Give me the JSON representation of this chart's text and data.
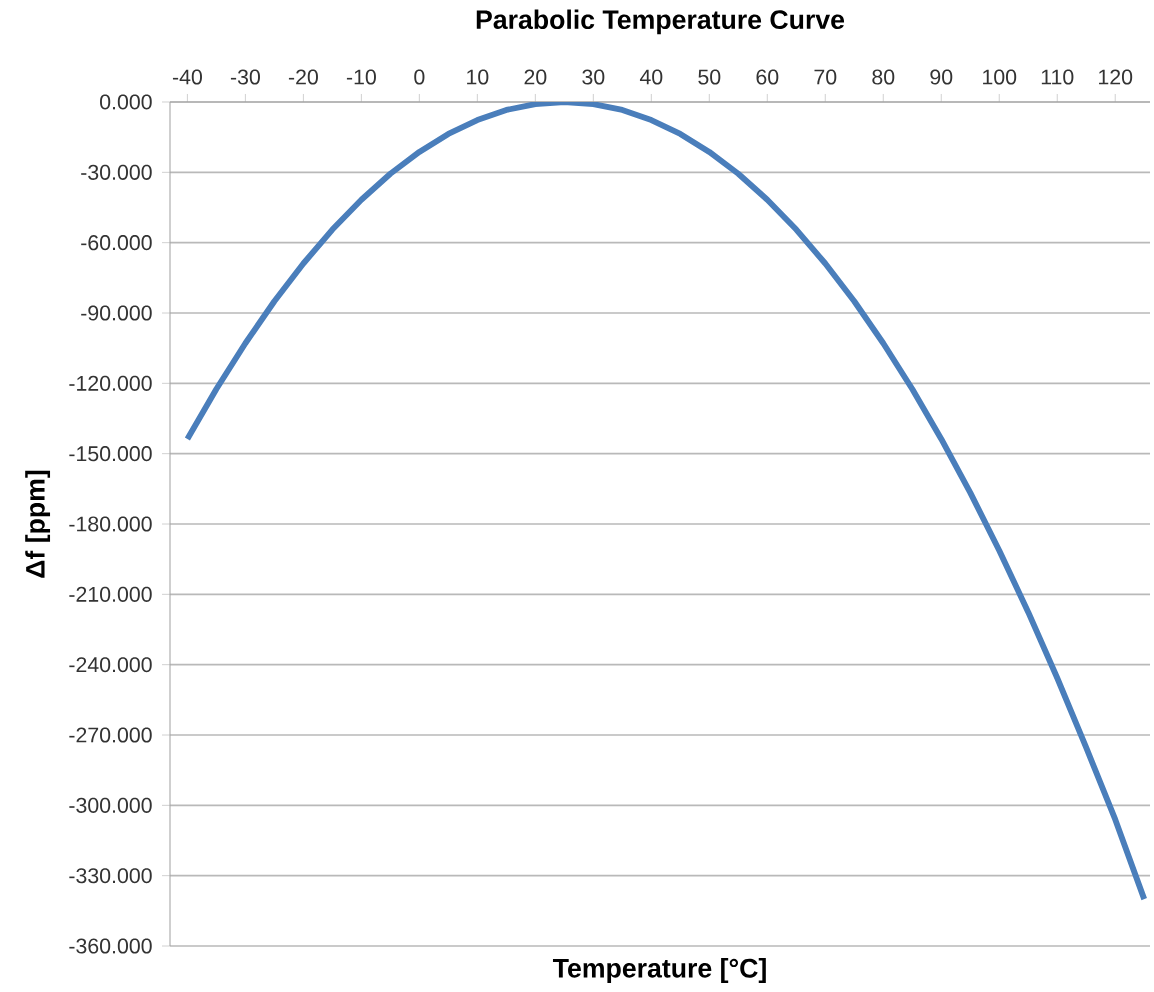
{
  "chart_data": {
    "type": "line",
    "title": "Parabolic Temperature Curve",
    "xlabel": "Temperature [°C]",
    "ylabel": "Δf [ppm]",
    "x": [
      -40,
      -35,
      -30,
      -25,
      -20,
      -15,
      -10,
      -5,
      0,
      5,
      10,
      15,
      20,
      25,
      30,
      35,
      40,
      45,
      50,
      55,
      60,
      65,
      70,
      75,
      80,
      85,
      90,
      95,
      100,
      105,
      110,
      115,
      120,
      125
    ],
    "series": [
      {
        "color": "#4a7ebb",
        "values": [
          -143.7,
          -122.4,
          -102.9,
          -85,
          -68.9,
          -54.4,
          -41.7,
          -30.6,
          -21.3,
          -13.6,
          -7.7,
          -3.4,
          -0.9,
          0,
          -0.9,
          -3.4,
          -7.7,
          -13.6,
          -21.3,
          -30.6,
          -41.7,
          -54.4,
          -68.9,
          -85,
          -102.9,
          -122.4,
          -143.7,
          -166.6,
          -191.3,
          -217.6,
          -245.7,
          -275.4,
          -306,
          -340
        ]
      }
    ],
    "xlim": [
      -43,
      126
    ],
    "ylim": [
      -360,
      0
    ],
    "xticks": [
      -40,
      -30,
      -20,
      -10,
      0,
      10,
      20,
      30,
      40,
      50,
      60,
      70,
      80,
      90,
      100,
      110,
      120
    ],
    "yticks": [
      {
        "value": 0,
        "label": "0.000"
      },
      {
        "value": -30,
        "label": "-30.000"
      },
      {
        "value": -60,
        "label": "-60.000"
      },
      {
        "value": -90,
        "label": "-90.000"
      },
      {
        "value": -120,
        "label": "-120.000"
      },
      {
        "value": -150,
        "label": "-150.000"
      },
      {
        "value": -180,
        "label": "-180.000"
      },
      {
        "value": -210,
        "label": "-210.000"
      },
      {
        "value": -240,
        "label": "-240.000"
      },
      {
        "value": -270,
        "label": "-270.000"
      },
      {
        "value": -300,
        "label": "-300.000"
      },
      {
        "value": -330,
        "label": "-330.000"
      },
      {
        "value": -360,
        "label": "-360.000"
      }
    ],
    "grid": "y",
    "marker": "none",
    "line_style": "solid"
  }
}
